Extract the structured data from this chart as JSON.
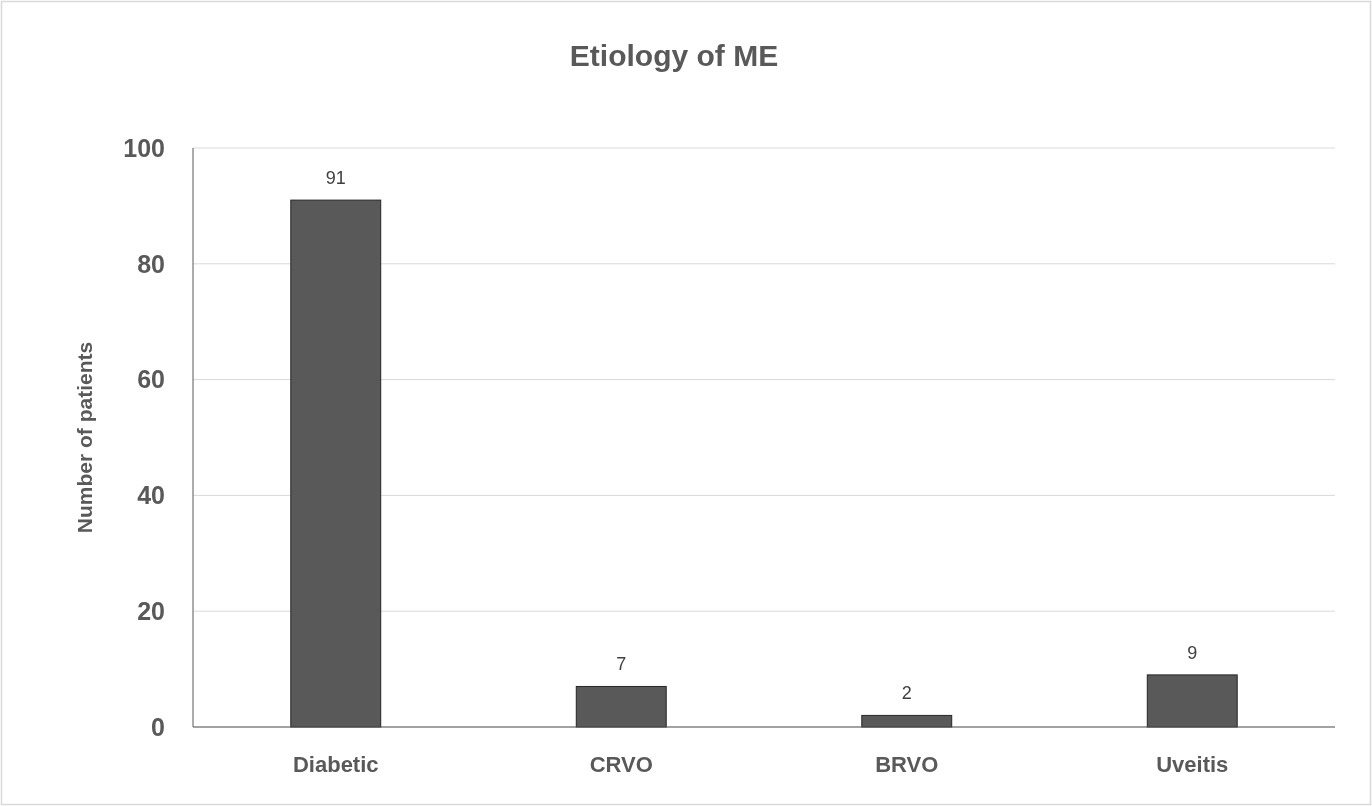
{
  "chart_data": {
    "type": "bar",
    "title": "Etiology of ME",
    "ylabel": "Number of patients",
    "categories": [
      "Diabetic",
      "CRVO",
      "BRVO",
      "Uveitis"
    ],
    "values": [
      91,
      7,
      2,
      9
    ],
    "color": "#595959",
    "ylim": [
      0,
      100
    ],
    "yticks": [
      0,
      20,
      40,
      60,
      80,
      100
    ],
    "grid": "y",
    "data_labels": true
  }
}
